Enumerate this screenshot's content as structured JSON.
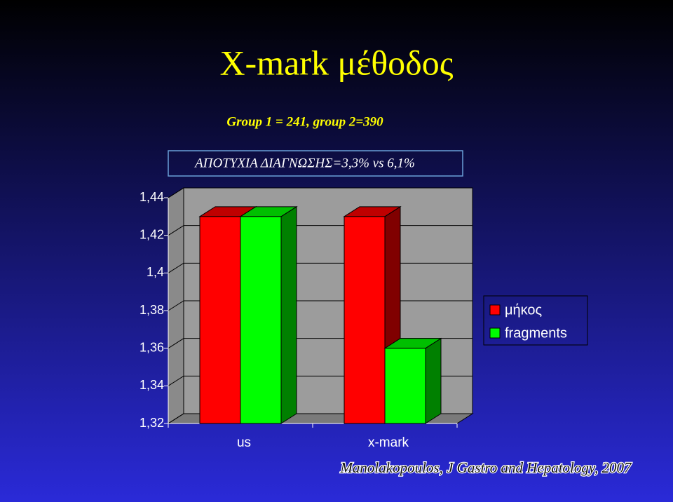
{
  "chart_data": {
    "type": "bar3d",
    "title": "X-mark μέθοδος",
    "subtitle": "Group 1 = 241, group 2=390",
    "annotation": "ΑΠΟΤΥΧΙΑ ΔΙΑΓΝΩΣΗΣ=3,3% vs 6,1%",
    "source": "Manolakopoulos, J Gastro and Hepatology, 2007",
    "categories": [
      "us",
      "x-mark"
    ],
    "series": [
      {
        "name": "μήκος",
        "color": "#ff0000",
        "values": [
          1.43,
          1.43
        ]
      },
      {
        "name": "fragments",
        "color": "#00ff00",
        "values": [
          1.43,
          1.36
        ]
      }
    ],
    "ylim": [
      1.32,
      1.44
    ],
    "yticks": [
      {
        "value": 1.32,
        "label": "1,32"
      },
      {
        "value": 1.34,
        "label": "1,34"
      },
      {
        "value": 1.36,
        "label": "1,36"
      },
      {
        "value": 1.38,
        "label": "1,38"
      },
      {
        "value": 1.4,
        "label": "1,4"
      },
      {
        "value": 1.42,
        "label": "1,42"
      },
      {
        "value": 1.44,
        "label": "1,44"
      }
    ],
    "grid": true,
    "legend": "right"
  }
}
